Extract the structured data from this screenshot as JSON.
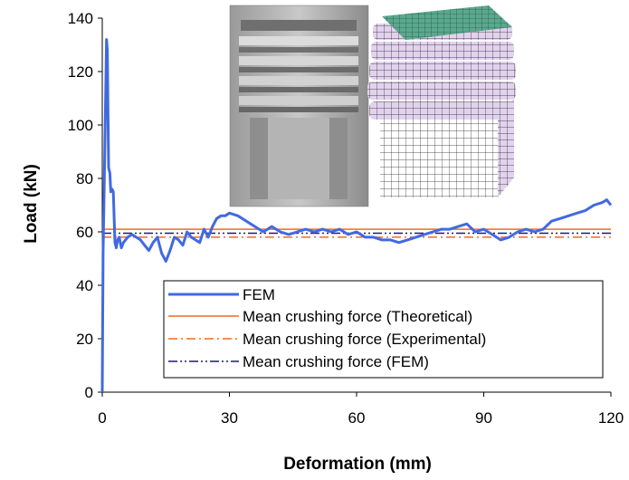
{
  "chart_data": {
    "type": "line",
    "title": "",
    "xlabel": "Deformation (mm)",
    "ylabel": "Load (kN)",
    "xlim": [
      0,
      120
    ],
    "ylim": [
      0,
      140
    ],
    "xticks": [
      0,
      30,
      60,
      90,
      120
    ],
    "yticks": [
      0,
      20,
      40,
      60,
      80,
      100,
      120,
      140
    ],
    "grid": false,
    "legend_position": "bottom-right",
    "series": [
      {
        "name": "FEM",
        "style": "solid-thick",
        "color": "#4169E1",
        "x": [
          0,
          0.2,
          0.5,
          0.8,
          1.0,
          1.2,
          1.5,
          1.8,
          2.0,
          2.3,
          2.6,
          3.0,
          3.3,
          3.6,
          4.0,
          4.5,
          5.0,
          6.0,
          7.0,
          8.0,
          9.0,
          10.0,
          11.0,
          12.0,
          13.0,
          14.0,
          15.0,
          16.0,
          17.0,
          18.0,
          19.0,
          20.0,
          21.0,
          22.0,
          23.0,
          24.0,
          25.0,
          26.0,
          27.0,
          28.0,
          29.0,
          30.0,
          32.0,
          34.0,
          36.0,
          38.0,
          40.0,
          42.0,
          44.0,
          46.0,
          48.0,
          50.0,
          52.0,
          54.0,
          56.0,
          58.0,
          60.0,
          62.0,
          64.0,
          66.0,
          68.0,
          70.0,
          72.0,
          74.0,
          76.0,
          78.0,
          80.0,
          82.0,
          84.0,
          86.0,
          88.0,
          90.0,
          92.0,
          94.0,
          96.0,
          98.0,
          100.0,
          102.0,
          104.0,
          106.0,
          108.0,
          110.0,
          112.0,
          114.0,
          116.0,
          118.0,
          119.0,
          120.0
        ],
        "y": [
          0,
          52,
          80,
          110,
          132,
          128,
          84,
          82,
          75,
          76,
          75,
          56,
          54,
          57,
          58,
          54,
          56,
          58,
          59,
          58,
          57,
          55,
          53,
          56,
          58,
          52,
          49,
          53,
          58,
          57,
          55,
          60,
          58,
          57,
          56,
          61,
          58,
          62,
          65,
          66,
          66,
          67,
          66,
          64,
          62,
          60,
          62,
          60,
          59,
          60,
          61,
          60,
          61,
          60,
          61,
          59,
          60,
          58,
          58,
          57,
          57,
          56,
          57,
          58,
          59,
          60,
          61,
          61,
          62,
          63,
          60,
          61,
          59,
          57,
          58,
          60,
          61,
          60,
          61,
          64,
          65,
          66,
          67,
          68,
          70,
          71,
          72,
          70
        ]
      },
      {
        "name": "Mean crushing force (Theoretical)",
        "style": "solid",
        "color": "#F26B1D",
        "x": [
          0,
          120
        ],
        "y": [
          61,
          61
        ]
      },
      {
        "name": "Mean crushing force (Experimental)",
        "style": "dash-dot",
        "color": "#F26B1D",
        "x": [
          0,
          120
        ],
        "y": [
          58,
          58
        ]
      },
      {
        "name": "Mean crushing force (FEM)",
        "style": "dash-dot-dot",
        "color": "#1A1A80",
        "x": [
          0,
          120
        ],
        "y": [
          59.5,
          59.5
        ]
      }
    ]
  },
  "images": {
    "photo": "experimental-crushed-specimen-photo",
    "fem_model": "fem-crushed-mesh-model"
  },
  "colors": {
    "fem": "#4169E1",
    "theoretical": "#F26B1D",
    "experimental": "#F26B1D",
    "fem_mean": "#1A1A80"
  }
}
